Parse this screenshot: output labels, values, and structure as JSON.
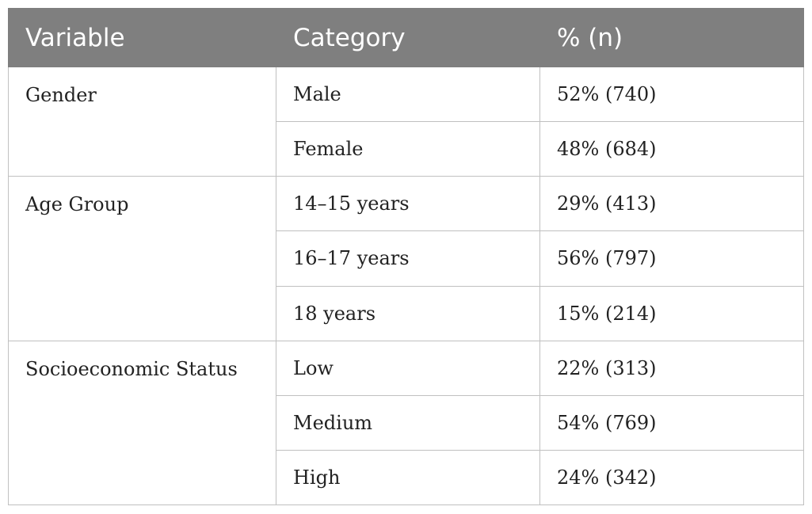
{
  "table": {
    "headers": [
      "Variable",
      "Category",
      "% (n)"
    ],
    "groups": [
      {
        "variable": "Gender",
        "rows": [
          {
            "category": "Male",
            "value": "52% (740)"
          },
          {
            "category": "Female",
            "value": "48% (684)"
          }
        ]
      },
      {
        "variable": "Age Group",
        "rows": [
          {
            "category": "14–15 years",
            "value": "29% (413)"
          },
          {
            "category": "16–17 years",
            "value": "56% (797)"
          },
          {
            "category": "18 years",
            "value": "15% (214)"
          }
        ]
      },
      {
        "variable": "Socioeconomic Status",
        "rows": [
          {
            "category": "Low",
            "value": "22% (313)"
          },
          {
            "category": "Medium",
            "value": "54% (769)"
          },
          {
            "category": "High",
            "value": "24% (342)"
          }
        ]
      }
    ]
  }
}
